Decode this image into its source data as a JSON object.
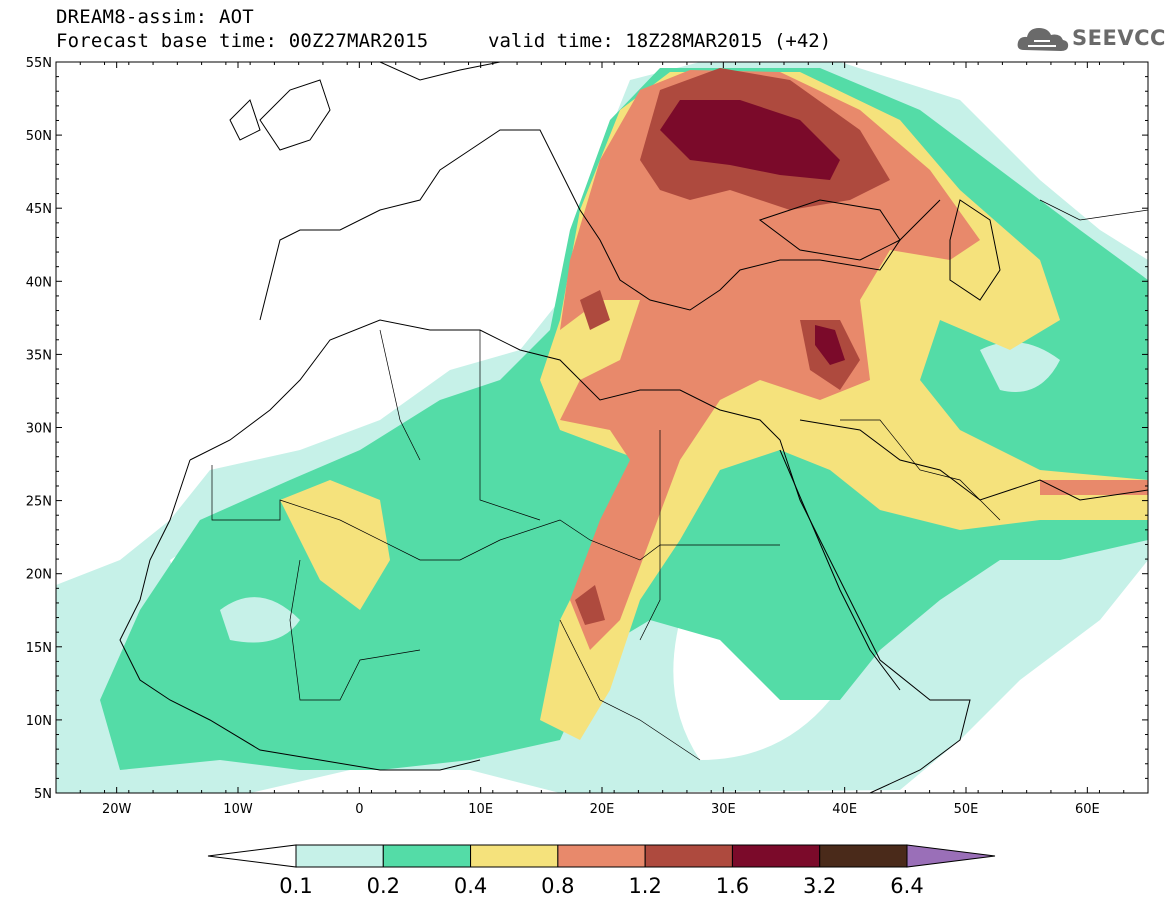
{
  "header": {
    "title": "DREAM8-assim: AOT",
    "forecast_base": "Forecast base time: 00Z27MAR2015",
    "valid_time": "valid time: 18Z28MAR2015 (+42)",
    "logo_text": "SEEVCCC"
  },
  "map": {
    "lon_range": [
      -25,
      65
    ],
    "lat_range": [
      5,
      55
    ],
    "lat_ticks": [
      "55N",
      "50N",
      "45N",
      "40N",
      "35N",
      "30N",
      "25N",
      "20N",
      "15N",
      "10N",
      "5N"
    ],
    "lon_ticks": [
      "20W",
      "10W",
      "0",
      "10E",
      "20E",
      "30E",
      "40E",
      "50E",
      "60E"
    ]
  },
  "colorbar": {
    "labels": [
      "0.1",
      "0.2",
      "0.4",
      "0.8",
      "1.2",
      "1.6",
      "3.2",
      "6.4"
    ],
    "colors": [
      "#ffffff",
      "#c6f1e8",
      "#54dca7",
      "#f5e27c",
      "#e8896b",
      "#ae4a3e",
      "#7b0a2a",
      "#4a2a1a",
      "#9a6fb8"
    ]
  }
}
